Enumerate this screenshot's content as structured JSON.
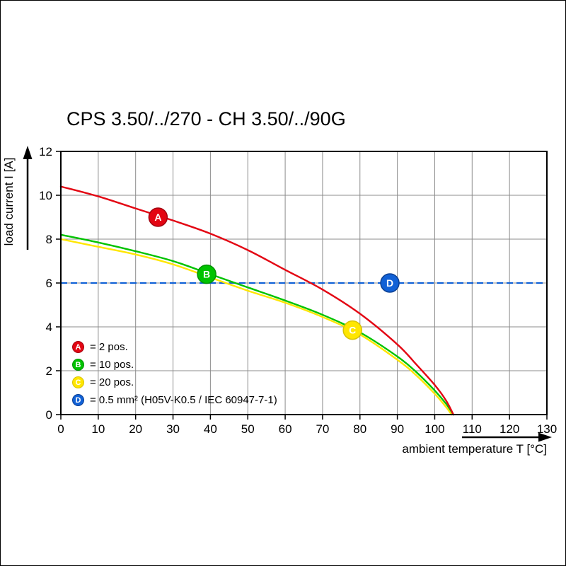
{
  "page": {
    "background": "#ffffff",
    "border_color": "#000000"
  },
  "chart_data": {
    "type": "line",
    "title": "CPS 3.50/../270 - CH 3.50/../90G",
    "xlabel": "ambient temperature T [°C]",
    "ylabel": "load current I [A]",
    "xlim": [
      0,
      130
    ],
    "ylim": [
      0,
      12
    ],
    "x_ticks": [
      0,
      10,
      20,
      30,
      40,
      50,
      60,
      70,
      80,
      90,
      100,
      110,
      120,
      130
    ],
    "y_ticks": [
      0,
      2,
      4,
      6,
      8,
      10,
      12
    ],
    "grid": true,
    "grid_color": "#8c8c8c",
    "frame_color": "#000000",
    "legend_position": "lower-left",
    "series": [
      {
        "id": "A",
        "name": "2 pos.",
        "legend_label": "= 2 pos.",
        "color": "#e30613",
        "ring": "#a30410",
        "curve_type": "line",
        "points": [
          [
            0,
            10.4
          ],
          [
            10,
            9.95
          ],
          [
            20,
            9.4
          ],
          [
            30,
            8.85
          ],
          [
            40,
            8.25
          ],
          [
            50,
            7.5
          ],
          [
            60,
            6.6
          ],
          [
            70,
            5.7
          ],
          [
            80,
            4.6
          ],
          [
            90,
            3.2
          ],
          [
            95,
            2.3
          ],
          [
            100,
            1.35
          ],
          [
            103,
            0.65
          ],
          [
            105,
            0
          ]
        ],
        "marker_at": [
          26,
          9.0
        ]
      },
      {
        "id": "B",
        "name": "10 pos.",
        "legend_label": "= 10 pos.",
        "color": "#00c300",
        "ring": "#009300",
        "curve_type": "line",
        "points": [
          [
            0,
            8.2
          ],
          [
            10,
            7.85
          ],
          [
            20,
            7.45
          ],
          [
            30,
            7.0
          ],
          [
            40,
            6.4
          ],
          [
            50,
            5.8
          ],
          [
            60,
            5.2
          ],
          [
            70,
            4.55
          ],
          [
            80,
            3.75
          ],
          [
            90,
            2.65
          ],
          [
            95,
            1.95
          ],
          [
            100,
            1.1
          ],
          [
            103,
            0.5
          ],
          [
            105,
            0
          ]
        ],
        "marker_at": [
          39,
          6.4
        ]
      },
      {
        "id": "C",
        "name": "20 pos.",
        "legend_label": "= 20 pos.",
        "color": "#ffe600",
        "ring": "#d8c200",
        "curve_type": "line",
        "points": [
          [
            0,
            8.0
          ],
          [
            10,
            7.65
          ],
          [
            20,
            7.3
          ],
          [
            30,
            6.85
          ],
          [
            40,
            6.25
          ],
          [
            50,
            5.65
          ],
          [
            60,
            5.1
          ],
          [
            70,
            4.45
          ],
          [
            80,
            3.65
          ],
          [
            90,
            2.5
          ],
          [
            95,
            1.8
          ],
          [
            100,
            0.95
          ],
          [
            103,
            0.35
          ],
          [
            104.5,
            0
          ]
        ],
        "marker_at": [
          78,
          3.85
        ]
      },
      {
        "id": "D",
        "name": "0.5 mm² (H05V-K0.5 / IEC 60947-7-1)",
        "legend_label": "= 0.5 mm² (H05V-K0.5 / IEC 60947-7-1)",
        "color": "#1161d6",
        "ring": "#0b3f92",
        "curve_type": "hline",
        "y": 6,
        "dashed": true,
        "marker_at": [
          88,
          6
        ]
      }
    ]
  }
}
